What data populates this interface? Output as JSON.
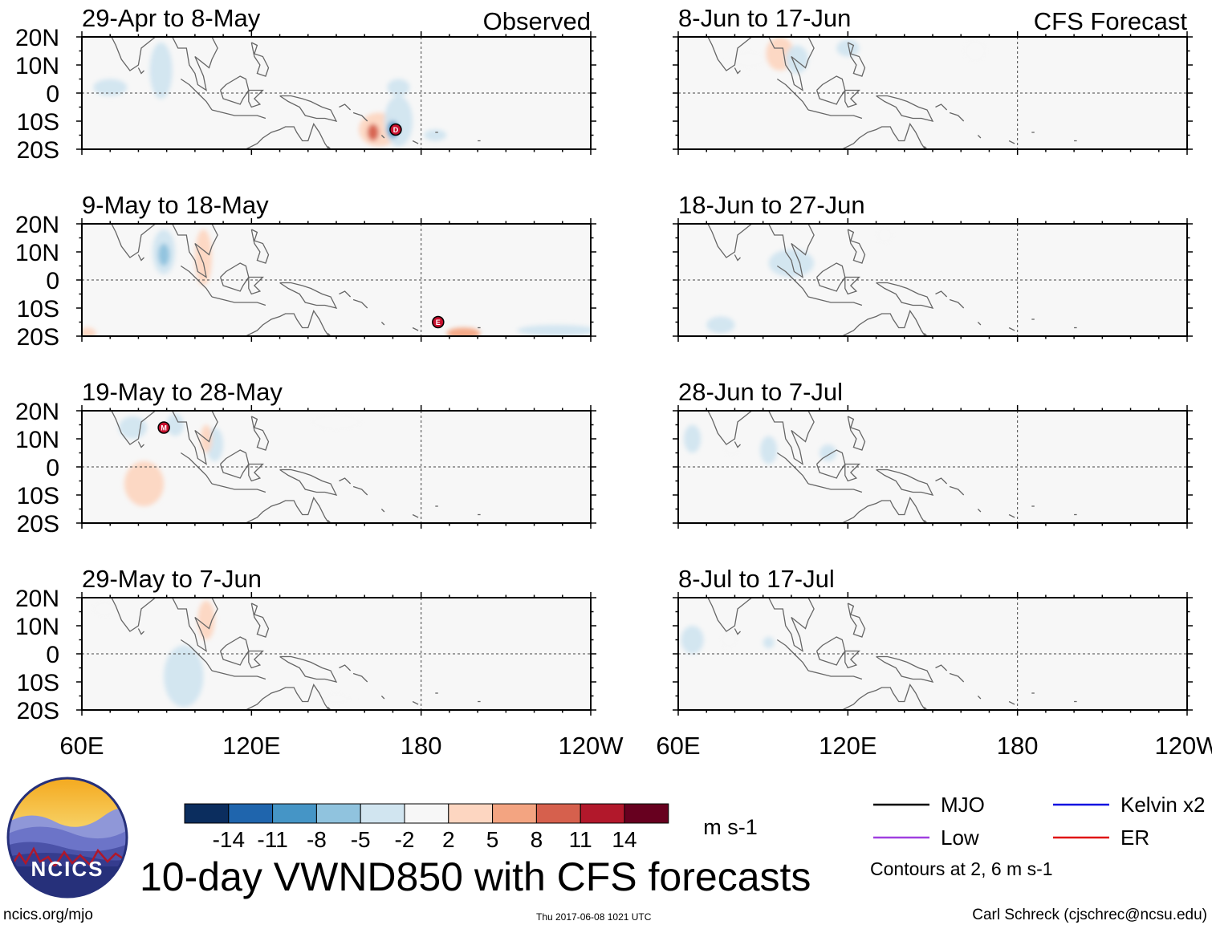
{
  "colors": {
    "map_bg": "#f7f7f7",
    "coast": "#666666",
    "mjo": "#000000",
    "kelvin": "#1010e0",
    "low": "#a040e0",
    "er": "#e01010",
    "palette": [
      "#0b2d5e",
      "#1f65ad",
      "#4595c6",
      "#90c3de",
      "#d1e5f0",
      "#f7f7f7",
      "#fdd6c1",
      "#f3a481",
      "#d6604d",
      "#b2182b",
      "#67001f"
    ]
  },
  "chart_data": {
    "type": "heatmap",
    "title": "10-day VWND850 with CFS forecasts",
    "variable": "VWND850",
    "units": "m s-1",
    "xlabel": "",
    "ylabel": "",
    "xlim_deg_east": [
      60,
      240
    ],
    "ylim_deg": [
      -20,
      20
    ],
    "x_tick_labels": [
      "60E",
      "120E",
      "180",
      "120W"
    ],
    "y_tick_labels": [
      "20N",
      "10N",
      "0",
      "10S",
      "20S"
    ],
    "colorbar_levels": [
      "-14",
      "-11",
      "-8",
      "-5",
      "-2",
      "2",
      "5",
      "8",
      "11",
      "14"
    ],
    "contour_note": "Contours at 2, 6 m s-1",
    "legend": [
      {
        "label": "MJO",
        "color_key": "mjo"
      },
      {
        "label": "Low",
        "color_key": "low"
      },
      {
        "label": "Kelvin x2",
        "color_key": "kelvin"
      },
      {
        "label": "ER",
        "color_key": "er"
      }
    ],
    "column_tags": {
      "observed": "Observed",
      "forecast": "CFS Forecast"
    },
    "panels": [
      {
        "period": "29-Apr to 8-May",
        "source": "observed",
        "tag": "Observed",
        "blobs": [
          {
            "lon": 88,
            "lat": 8,
            "rlon": 4,
            "rlat": 10,
            "v": -3
          },
          {
            "lon": 165,
            "lat": -13,
            "rlon": 7,
            "rlat": 6,
            "v": 4
          },
          {
            "lon": 163,
            "lat": -14,
            "rlon": 2,
            "rlat": 3,
            "v": 9
          },
          {
            "lon": 172,
            "lat": -10,
            "rlon": 5,
            "rlat": 9,
            "v": -3
          },
          {
            "lon": 170,
            "lat": -13,
            "rlon": 2,
            "rlat": 3,
            "v": -8
          },
          {
            "lon": 172,
            "lat": 2,
            "rlon": 4,
            "rlat": 3,
            "v": -2
          },
          {
            "lon": 70,
            "lat": 2,
            "rlon": 6,
            "rlat": 3,
            "v": -2
          },
          {
            "lon": 185,
            "lat": -15,
            "rlon": 4,
            "rlat": 2,
            "v": -2
          }
        ],
        "markers": [
          {
            "lon": 171,
            "lat": -13,
            "label": "D"
          }
        ]
      },
      {
        "period": "9-May to 18-May",
        "source": "observed",
        "blobs": [
          {
            "lon": 89,
            "lat": 10,
            "rlon": 4,
            "rlat": 8,
            "v": -3
          },
          {
            "lon": 89,
            "lat": 9,
            "rlon": 2,
            "rlat": 4,
            "v": -6
          },
          {
            "lon": 103,
            "lat": 8,
            "rlon": 3,
            "rlat": 10,
            "v": 3
          },
          {
            "lon": 228,
            "lat": -18,
            "rlon": 14,
            "rlat": 2,
            "v": -2
          },
          {
            "lon": 195,
            "lat": -19,
            "rlon": 6,
            "rlat": 2,
            "v": 7
          },
          {
            "lon": 62,
            "lat": -19,
            "rlon": 3,
            "rlat": 2,
            "v": 3
          }
        ],
        "markers": [
          {
            "lon": 186,
            "lat": -15,
            "label": "E"
          }
        ]
      },
      {
        "period": "19-May to 28-May",
        "source": "observed",
        "blobs": [
          {
            "lon": 82,
            "lat": -6,
            "rlon": 7,
            "rlat": 8,
            "v": 3
          },
          {
            "lon": 93,
            "lat": 15,
            "rlon": 3,
            "rlat": 4,
            "v": -4
          },
          {
            "lon": 150,
            "lat": 16,
            "rlon": 10,
            "rlat": 4,
            "v": 2
          },
          {
            "lon": 107,
            "lat": 8,
            "rlon": 3,
            "rlat": 6,
            "v": -2
          },
          {
            "lon": 104,
            "lat": 10,
            "rlon": 2,
            "rlat": 5,
            "v": 3
          },
          {
            "lon": 78,
            "lat": 14,
            "rlon": 5,
            "rlat": 4,
            "v": -2
          }
        ],
        "markers": [
          {
            "lon": 89,
            "lat": 14,
            "label": "M"
          }
        ]
      },
      {
        "period": "29-May to 7-Jun",
        "source": "observed",
        "blobs": [
          {
            "lon": 96,
            "lat": -8,
            "rlon": 7,
            "rlat": 11,
            "v": -2
          },
          {
            "lon": 68,
            "lat": 16,
            "rlon": 5,
            "rlat": 4,
            "v": 2
          },
          {
            "lon": 104,
            "lat": 12,
            "rlon": 3,
            "rlat": 7,
            "v": 3
          },
          {
            "lon": 150,
            "lat": -16,
            "rlon": 6,
            "rlat": 3,
            "v": 2
          }
        ],
        "markers": []
      },
      {
        "period": "8-Jun to 17-Jun",
        "source": "forecast",
        "tag": "CFS Forecast",
        "blobs": [
          {
            "lon": 85,
            "lat": 12,
            "rlon": 7,
            "rlat": 4,
            "v": 2
          },
          {
            "lon": 96,
            "lat": 14,
            "rlon": 5,
            "rlat": 6,
            "v": 3
          },
          {
            "lon": 102,
            "lat": 12,
            "rlon": 4,
            "rlat": 5,
            "v": -2
          },
          {
            "lon": 165,
            "lat": 15,
            "rlon": 5,
            "rlat": 5,
            "v": 2
          },
          {
            "lon": 120,
            "lat": 16,
            "rlon": 4,
            "rlat": 3,
            "v": -2
          }
        ],
        "markers": []
      },
      {
        "period": "18-Jun to 27-Jun",
        "source": "forecast",
        "blobs": [
          {
            "lon": 100,
            "lat": 6,
            "rlon": 8,
            "rlat": 5,
            "v": -2
          },
          {
            "lon": 75,
            "lat": -16,
            "rlon": 5,
            "rlat": 3,
            "v": -2
          },
          {
            "lon": 133,
            "lat": 16,
            "rlon": 4,
            "rlat": 4,
            "v": 2
          },
          {
            "lon": 97,
            "lat": 18,
            "rlon": 3,
            "rlat": 3,
            "v": 2
          }
        ],
        "markers": []
      },
      {
        "period": "28-Jun to 7-Jul",
        "source": "forecast",
        "blobs": [
          {
            "lon": 79,
            "lat": 7,
            "rlon": 4,
            "rlat": 4,
            "v": 2
          },
          {
            "lon": 92,
            "lat": 6,
            "rlon": 3,
            "rlat": 5,
            "v": -2
          },
          {
            "lon": 65,
            "lat": 10,
            "rlon": 3,
            "rlat": 5,
            "v": -2
          },
          {
            "lon": 113,
            "lat": 5,
            "rlon": 3,
            "rlat": 3,
            "v": -2
          }
        ],
        "markers": []
      },
      {
        "period": "8-Jul to 17-Jul",
        "source": "forecast",
        "blobs": [
          {
            "lon": 78,
            "lat": 5,
            "rlon": 4,
            "rlat": 4,
            "v": 2
          },
          {
            "lon": 65,
            "lat": 5,
            "rlon": 4,
            "rlat": 5,
            "v": -2
          },
          {
            "lon": 92,
            "lat": 4,
            "rlon": 2,
            "rlat": 2,
            "v": -2
          }
        ],
        "markers": []
      }
    ]
  },
  "footer": {
    "logo_text": "NCICS",
    "site": "ncics.org/mjo",
    "timestamp": "Thu 2017-06-08 1021 UTC",
    "author": "Carl Schreck (cjschrec@ncsu.edu)"
  }
}
